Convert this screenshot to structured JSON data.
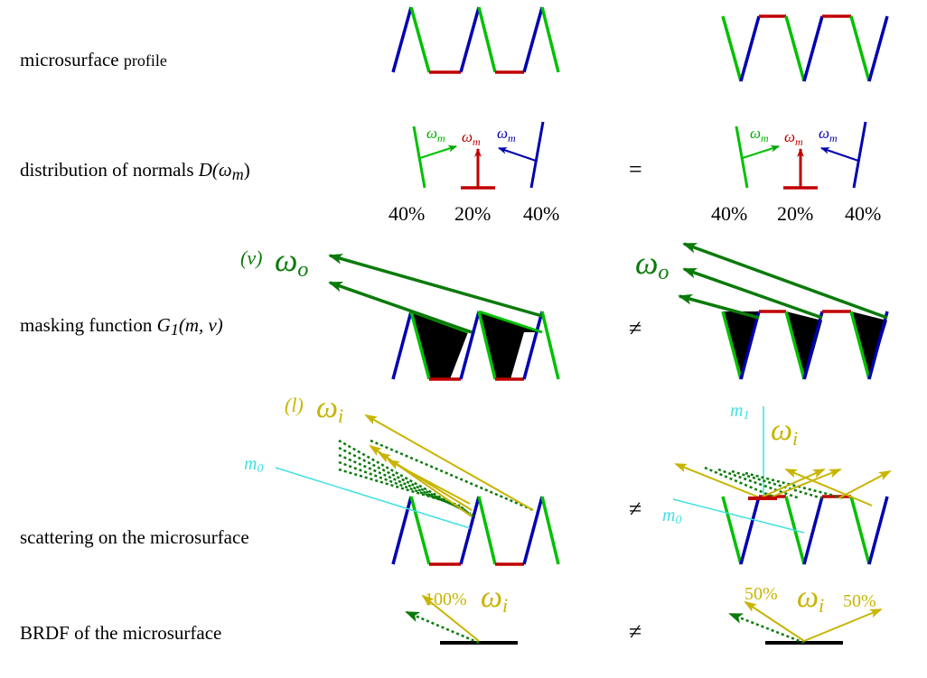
{
  "rows": [
    {
      "label": "microsurface",
      "label_small": "profile"
    },
    {
      "label": "distribution of normals",
      "math": [
        "D(",
        "ω",
        "m",
        ")"
      ],
      "relation": "="
    },
    {
      "label": "masking function",
      "math": [
        "G",
        "1",
        "(m, v)"
      ],
      "relation": "≠"
    },
    {
      "label": "scattering on the microsurface",
      "relation": "≠"
    },
    {
      "label": "BRDF of the microsurface",
      "relation": "≠"
    }
  ],
  "normals": {
    "omega": "ω",
    "sub": "m",
    "left_percents": [
      "40%",
      "20%",
      "40%"
    ],
    "right_percents": [
      "40%",
      "20%",
      "40%"
    ]
  },
  "masking": {
    "tag": "(v)",
    "omega": "ω",
    "sub": "o"
  },
  "scattering": {
    "tag": "(l)",
    "omega": "ω",
    "sub": "i",
    "m0": [
      "m",
      "0"
    ],
    "m1": [
      "m",
      "1"
    ]
  },
  "brdf": {
    "left_percent": "100%",
    "omega": "ω",
    "sub": "i",
    "right_percents": [
      "50%",
      "50%"
    ]
  }
}
